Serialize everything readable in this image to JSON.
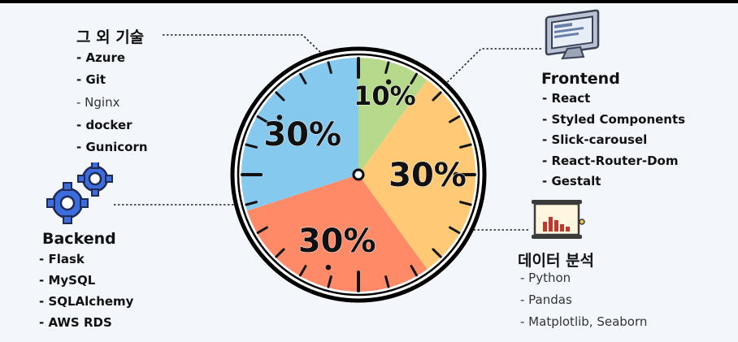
{
  "chart_data": {
    "type": "pie",
    "slices": [
      {
        "label": "10%",
        "value": 10,
        "category": "그 외 기술",
        "color": "#b7d98c"
      },
      {
        "label": "30%",
        "value": 30,
        "category": "Frontend",
        "color": "#ffc976"
      },
      {
        "label": "30%",
        "value": 30,
        "category": "데이터 분석",
        "color": "#ff8a68"
      },
      {
        "label": "30%",
        "value": 30,
        "category": "Backend",
        "color": "#85c9ef"
      }
    ]
  },
  "groups": {
    "other": {
      "title": "그 외 기술",
      "items": [
        {
          "text": "- Azure",
          "bold": true
        },
        {
          "text": "- Git",
          "bold": true
        },
        {
          "text": "- Nginx",
          "bold": false
        },
        {
          "text": "- docker",
          "bold": true
        },
        {
          "text": "- Gunicorn",
          "bold": true
        }
      ]
    },
    "frontend": {
      "title": "Frontend",
      "items": [
        {
          "text": "- React",
          "bold": true
        },
        {
          "text": "- Styled Components",
          "bold": true
        },
        {
          "text": "- Slick-carousel",
          "bold": true
        },
        {
          "text": "- React-Router-Dom",
          "bold": true
        },
        {
          "text": "- Gestalt",
          "bold": true
        }
      ]
    },
    "backend": {
      "title": "Backend",
      "items": [
        {
          "text": "- Flask",
          "bold": true
        },
        {
          "text": "- MySQL",
          "bold": true
        },
        {
          "text": "- SQLAlchemy",
          "bold": true
        },
        {
          "text": "- AWS RDS",
          "bold": true
        }
      ]
    },
    "data": {
      "title": "데이터 분석",
      "items": [
        {
          "text": "- Python",
          "bold": false
        },
        {
          "text": "- Pandas",
          "bold": false
        },
        {
          "text": "- Matplotlib, Seaborn",
          "bold": false
        }
      ]
    }
  },
  "icons": {
    "frontend": "monitor-icon",
    "backend": "gears-icon",
    "data": "presentation-chart-icon"
  }
}
